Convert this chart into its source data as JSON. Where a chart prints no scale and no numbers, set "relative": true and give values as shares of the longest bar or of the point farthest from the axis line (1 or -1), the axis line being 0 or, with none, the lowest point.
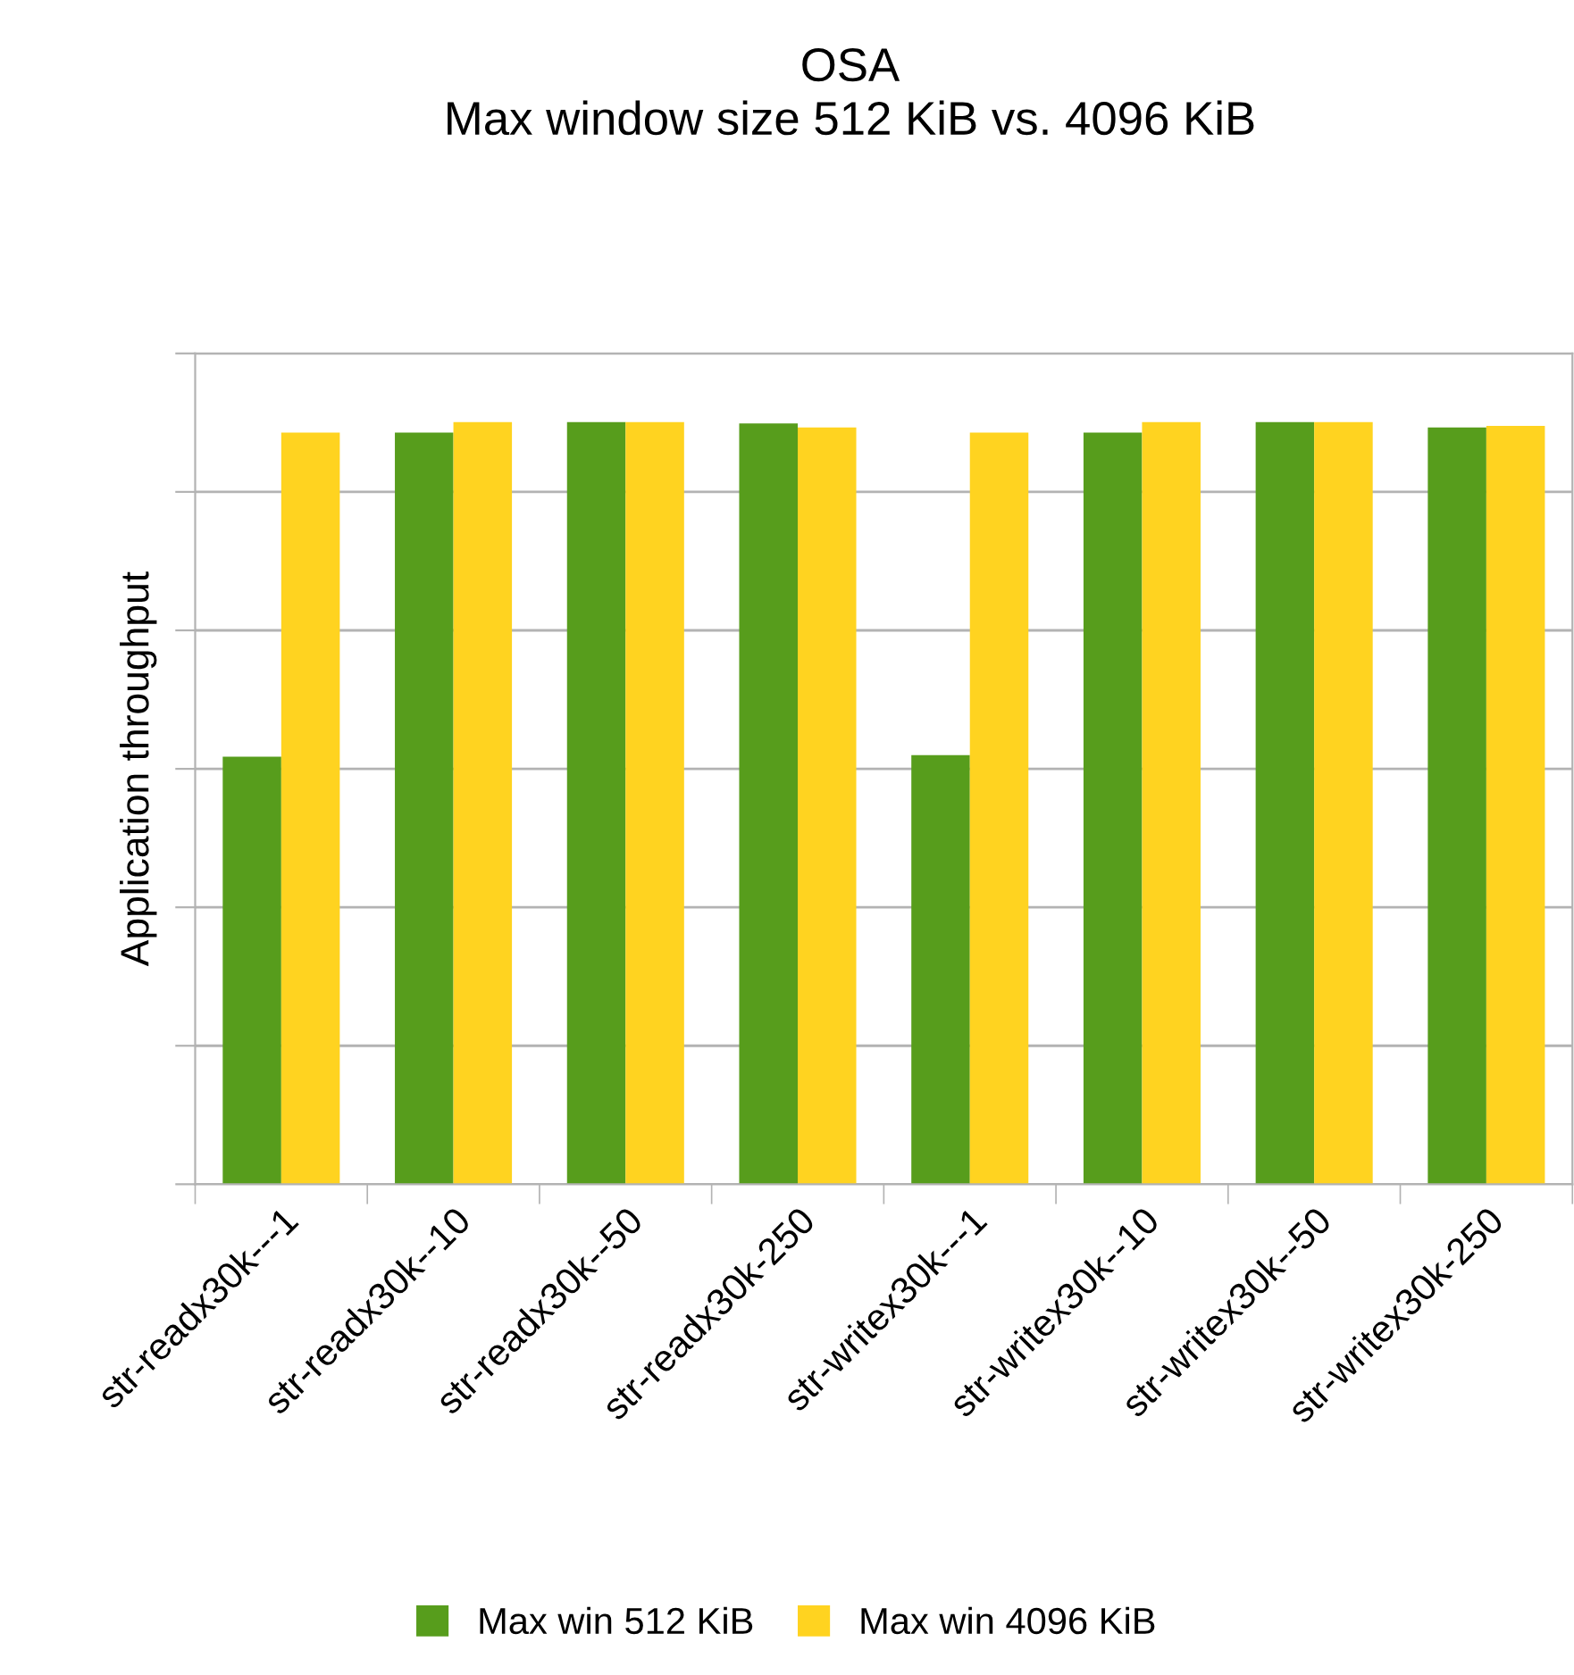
{
  "chart_data": {
    "type": "bar",
    "title": "OSA",
    "subtitle": "Max window size 512 KiB vs. 4096 KiB",
    "ylabel": "Application throughput",
    "relative": true,
    "grid": "y",
    "legend": "bottom",
    "categories": [
      "str-readx30k---1",
      "str-readx30k--10",
      "str-readx30k--50",
      "str-readx30k-250",
      "str-writex30k---1",
      "str-writex30k--10",
      "str-writex30k--50",
      "str-writex30k-250"
    ],
    "series": [
      {
        "name": "Max win 512 KiB",
        "color": "#579d1c",
        "values": [
          0.561,
          0.986,
          1,
          0.998,
          0.563,
          0.986,
          1,
          0.993
        ]
      },
      {
        "name": "Max win 4096 KiB",
        "color": "#ffd320",
        "values": [
          0.986,
          1,
          1,
          0.993,
          0.986,
          1,
          1,
          0.995
        ]
      }
    ]
  }
}
